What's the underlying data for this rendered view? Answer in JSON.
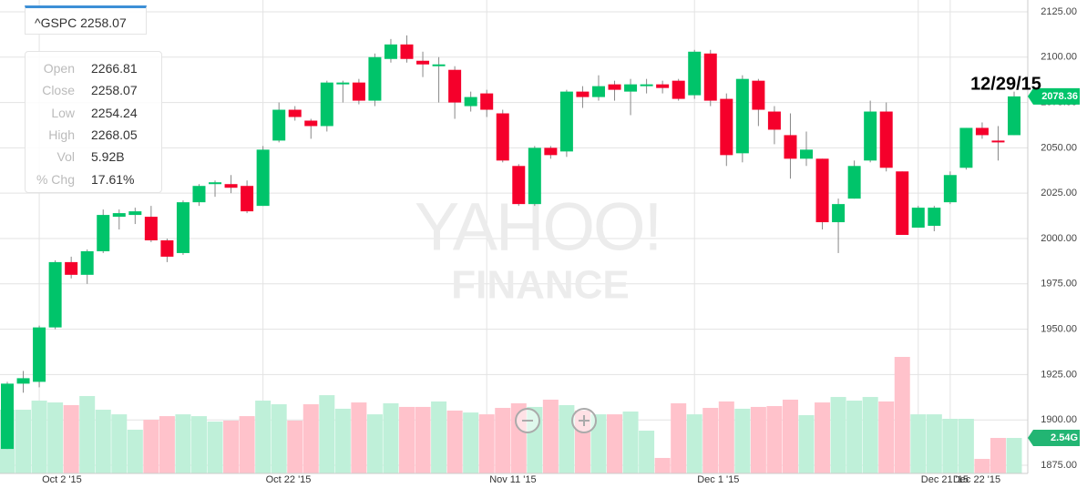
{
  "chart_data": {
    "type": "candlestick",
    "annotation": "12/29/15",
    "watermark": [
      "YAHOO!",
      "FINANCE"
    ],
    "categories": [
      null,
      null,
      "Oct 2 '15",
      null,
      null,
      null,
      null,
      null,
      null,
      null,
      null,
      null,
      null,
      null,
      null,
      null,
      "Oct 22 '15",
      null,
      null,
      null,
      null,
      null,
      null,
      null,
      null,
      null,
      null,
      null,
      null,
      null,
      "Nov 11 '15",
      null,
      null,
      null,
      null,
      null,
      null,
      null,
      null,
      null,
      null,
      null,
      null,
      "Dec 1 '15",
      null,
      null,
      null,
      null,
      null,
      null,
      null,
      null,
      null,
      null,
      null,
      null,
      null,
      "Dec 21 '15",
      null,
      "Dec 22 '15",
      null,
      null,
      null,
      null
    ],
    "open": [
      1884,
      1920,
      1921,
      1951,
      1987,
      1980,
      1993,
      2012,
      2013,
      2012,
      1999,
      1992,
      2020,
      2030,
      2030,
      2029,
      2018,
      2054,
      2071,
      2065,
      2062,
      2085,
      2086,
      2076,
      2099,
      2107,
      2098,
      2095,
      2093,
      2073,
      2080,
      2069,
      2040,
      2019,
      2050,
      2048,
      2081,
      2078,
      2085,
      2081,
      2084,
      2085,
      2087,
      2079,
      2102,
      2077,
      2047,
      2087,
      2070,
      2057,
      2044,
      2044,
      2009,
      2022,
      2043,
      2070,
      2037,
      2006,
      2007,
      2020,
      2039,
      2061,
      2054,
      2057
    ],
    "high": [
      1921,
      1927,
      1952,
      1988,
      1990,
      1994,
      2016,
      2016,
      2017,
      2018,
      2000,
      2021,
      2030,
      2032,
      2035,
      2032,
      2051,
      2075,
      2073,
      2066,
      2087,
      2087,
      2088,
      2102,
      2110,
      2112,
      2103,
      2100,
      2095,
      2081,
      2082,
      2071,
      2041,
      2051,
      2051,
      2082,
      2084,
      2090,
      2087,
      2088,
      2088,
      2087,
      2088,
      2104,
      2104,
      2080,
      2090,
      2088,
      2073,
      2069,
      2059,
      2044,
      2022,
      2043,
      2076,
      2075,
      2037,
      2018,
      2018,
      2037,
      2061,
      2064,
      2062,
      2081
    ],
    "low": [
      1884,
      1915,
      1918,
      1950,
      1978,
      1975,
      1992,
      2005,
      2008,
      1998,
      1987,
      1991,
      2018,
      2023,
      2025,
      2014,
      2018,
      2053,
      2065,
      2055,
      2059,
      2075,
      2074,
      2073,
      2097,
      2097,
      2089,
      2075,
      2066,
      2070,
      2067,
      2042,
      2018,
      2018,
      2044,
      2045,
      2072,
      2076,
      2076,
      2068,
      2080,
      2080,
      2076,
      2077,
      2073,
      2040,
      2042,
      2062,
      2052,
      2033,
      2040,
      2005,
      1992,
      2022,
      2042,
      2037,
      2002,
      2006,
      2004,
      2019,
      2038,
      2055,
      2043,
      2057
    ],
    "close": [
      1920,
      1923,
      1951,
      1987,
      1980,
      1993,
      2013,
      2014,
      2015,
      1999,
      1990,
      2020,
      2029,
      2031,
      2028,
      2015,
      2049,
      2071,
      2067,
      2062,
      2086,
      2086,
      2076,
      2100,
      2107,
      2099,
      2096,
      2096,
      2075,
      2078,
      2071,
      2043,
      2019,
      2050,
      2046,
      2081,
      2078,
      2084,
      2082,
      2085,
      2085,
      2083,
      2077,
      2103,
      2076,
      2046,
      2088,
      2071,
      2060,
      2044,
      2049,
      2009,
      2019,
      2040,
      2070,
      2039,
      2002,
      2017,
      2017,
      2035,
      2061,
      2057,
      2053,
      2078.36
    ],
    "volume": [
      4.56,
      4.56,
      5.21,
      5.08,
      4.89,
      5.54,
      4.56,
      4.23,
      3.13,
      3.84,
      4.1,
      4.23,
      4.1,
      3.71,
      3.78,
      4.1,
      5.21,
      4.95,
      3.78,
      4.95,
      5.6,
      4.63,
      5.08,
      4.23,
      5.02,
      4.76,
      4.76,
      5.15,
      4.5,
      4.36,
      4.23,
      4.69,
      5.02,
      4.76,
      5.28,
      4.89,
      4.5,
      4.23,
      4.23,
      4.43,
      3.06,
      1.11,
      5.02,
      4.23,
      4.69,
      5.15,
      4.63,
      4.76,
      4.82,
      5.28,
      4.17,
      5.08,
      5.47,
      5.21,
      5.47,
      5.15,
      8.34,
      4.23,
      4.23,
      3.91,
      3.91,
      1.04,
      2.54,
      2.54
    ],
    "volume_value_labels": [
      null,
      null,
      null,
      null,
      null,
      null,
      null,
      null,
      null,
      null,
      null,
      null,
      null,
      null,
      null,
      null,
      null,
      null,
      null,
      null,
      null,
      null,
      null,
      null,
      null,
      null,
      null,
      null,
      null,
      null,
      null,
      null,
      null,
      null,
      null,
      null,
      null,
      null,
      null,
      null,
      null,
      null,
      null,
      null,
      null,
      null,
      null,
      null,
      null,
      null,
      null,
      null,
      null,
      null,
      null,
      null,
      null,
      null,
      null,
      null,
      null,
      null,
      null,
      "2.54G"
    ],
    "ylim": [
      1870.5,
      2131.5
    ],
    "yticks": [
      {
        "value": 1875,
        "label": "1875.00"
      },
      {
        "value": 1900,
        "label": "1900.00"
      },
      {
        "value": 1925,
        "label": "1925.00"
      },
      {
        "value": 1950,
        "label": "1950.00"
      },
      {
        "value": 1975,
        "label": "1975.00"
      },
      {
        "value": 2000,
        "label": "2000.00"
      },
      {
        "value": 2025,
        "label": "2025.00"
      },
      {
        "value": 2050,
        "label": "2050.00"
      },
      {
        "value": 2075,
        "label": "2075.00"
      },
      {
        "value": 2100,
        "label": "2100.00"
      },
      {
        "value": 2125,
        "label": "2125.00"
      }
    ],
    "grid": true,
    "up_color": "#00c46a",
    "down_color": "#f5002b",
    "volume_up_color": "#bff0d9",
    "volume_down_color": "#ffc2cb"
  },
  "tooltip": {
    "title": "^GSPC 2258.07",
    "rows": [
      {
        "label": "Open",
        "value": "2266.81"
      },
      {
        "label": "Close",
        "value": "2258.07"
      },
      {
        "label": "Low",
        "value": "2254.24"
      },
      {
        "label": "High",
        "value": "2268.05"
      },
      {
        "label": "Vol",
        "value": "5.92B"
      },
      {
        "label": "% Chg",
        "value": "17.61%"
      }
    ]
  }
}
